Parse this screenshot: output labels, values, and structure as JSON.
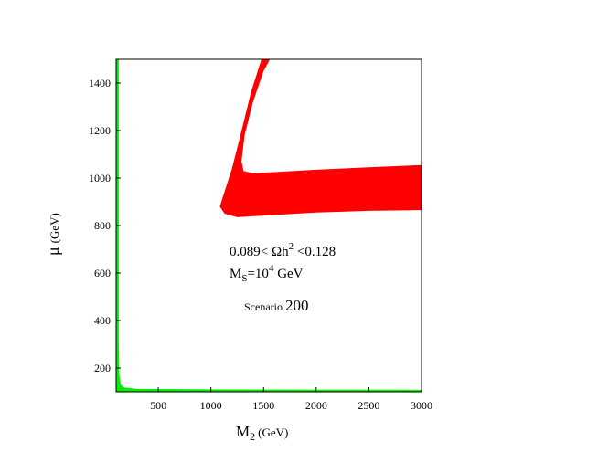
{
  "chart_data": {
    "type": "area",
    "xlabel_main": "M",
    "xlabel_sub": "2",
    "xlabel_unit": "(GeV)",
    "ylabel_main": "μ",
    "ylabel_unit": "(GeV)",
    "xlim": [
      100,
      3000
    ],
    "ylim": [
      100,
      1500
    ],
    "x_ticks": [
      500,
      1000,
      1500,
      2000,
      2500,
      3000
    ],
    "y_ticks": [
      200,
      400,
      600,
      800,
      1000,
      1200,
      1400
    ],
    "annotations": {
      "line1_pre": "0.089< Ωh",
      "line1_sup": "2",
      "line1_post": " <0.128",
      "line2_main": "M",
      "line2_sub": "S",
      "line2_mid": "=10",
      "line2_sup": "4",
      "line2_post": " GeV",
      "line3_small": "Scenario ",
      "line3_big": "200"
    },
    "colors": {
      "red": "#ff0000",
      "green": "#00ee00"
    },
    "regions": [
      {
        "color": "red",
        "polygon": [
          [
            1130,
            850
          ],
          [
            1250,
            835
          ],
          [
            1500,
            842
          ],
          [
            2000,
            855
          ],
          [
            2500,
            862
          ],
          [
            3000,
            865
          ],
          [
            3000,
            1055
          ],
          [
            2500,
            1045
          ],
          [
            2000,
            1035
          ],
          [
            1600,
            1025
          ],
          [
            1400,
            1020
          ],
          [
            1310,
            1030
          ],
          [
            1290,
            1070
          ],
          [
            1320,
            1180
          ],
          [
            1400,
            1320
          ],
          [
            1500,
            1450
          ],
          [
            1560,
            1500
          ],
          [
            1480,
            1500
          ],
          [
            1380,
            1360
          ],
          [
            1280,
            1180
          ],
          [
            1200,
            1040
          ],
          [
            1120,
            930
          ],
          [
            1085,
            880
          ]
        ]
      },
      {
        "color": "green",
        "polygon": [
          [
            100,
            1500
          ],
          [
            125,
            1500
          ],
          [
            125,
            300
          ],
          [
            130,
            170
          ],
          [
            145,
            130
          ],
          [
            175,
            118
          ],
          [
            300,
            112
          ],
          [
            1000,
            110
          ],
          [
            2000,
            109
          ],
          [
            3000,
            108
          ],
          [
            3000,
            100
          ],
          [
            100,
            100
          ]
        ]
      }
    ]
  }
}
